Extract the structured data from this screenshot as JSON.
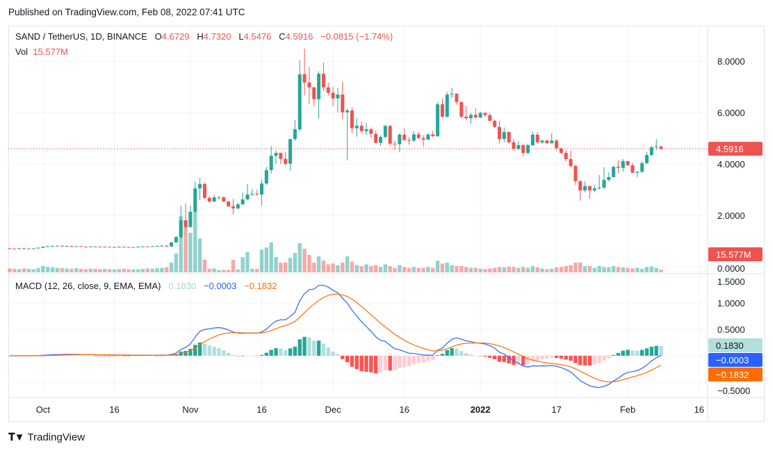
{
  "published": "Published on TradingView.com, Feb 08, 2022 07:41 UTC",
  "legend": {
    "symbol": "SAND / TetherUS, 1D, BINANCE",
    "o_label": "O",
    "o": "4.6729",
    "h_label": "H",
    "h": "4.7320",
    "l_label": "L",
    "l": "4.5476",
    "c_label": "C",
    "c": "4.5916",
    "change": "−0.0815 (−1.74%)",
    "vol_label": "Vol",
    "vol": "15.577M"
  },
  "macd_legend": {
    "title": "MACD (12, 26, close, 9, EMA, EMA)",
    "histogram": "0.1830",
    "macd": "−0.0003",
    "signal": "−0.1832"
  },
  "footer": {
    "logo": "TradingView"
  },
  "colors": {
    "up": "#26a69a",
    "down": "#ef5350",
    "macd_line": "#2962ff",
    "signal_line": "#ff6d00",
    "hist_pos_rising": "#26a69a",
    "hist_pos_falling": "#b2dfdb",
    "hist_neg_falling": "#ff5252",
    "hist_neg_rising": "#ffcdd2"
  },
  "chart_data": {
    "type": "candlestick",
    "price_axis": {
      "ticks": [
        "8.0000",
        "6.0000",
        "4.0000",
        "2.0000",
        "0.0000"
      ],
      "values": [
        8,
        6,
        4,
        2,
        0
      ]
    },
    "last_price_label": "4.5916",
    "last_price": 4.5916,
    "last_volume_label": "15.577M",
    "macd_axis": {
      "ticks": [
        "1.5000",
        "1.0000",
        "0.5000",
        "−0.5000"
      ],
      "values": [
        1.5,
        1.0,
        0.5,
        -0.5
      ]
    },
    "macd_labels": {
      "histogram": "0.1830",
      "macd": "−0.0003",
      "signal": "−0.1832"
    },
    "macd_params": {
      "fast": 12,
      "slow": 26,
      "signal": 9
    },
    "x_ticks": [
      [
        "Oct",
        "2021-10-01"
      ],
      [
        "16",
        "2021-10-16"
      ],
      [
        "Nov",
        "2021-11-01"
      ],
      [
        "16",
        "2021-11-16"
      ],
      [
        "Dec",
        "2021-12-01"
      ],
      [
        "16",
        "2021-12-16"
      ],
      [
        "2022",
        "2022-01-01"
      ],
      [
        "17",
        "2022-01-17"
      ],
      [
        "Feb",
        "2022-02-01"
      ],
      [
        "16",
        "2022-02-16"
      ]
    ],
    "grid": true,
    "columns": [
      "date",
      "open",
      "high",
      "low",
      "close",
      "volume_M"
    ],
    "candles": [
      [
        "2021-09-24",
        0.72,
        0.74,
        0.69,
        0.71,
        22
      ],
      [
        "2021-09-25",
        0.71,
        0.72,
        0.69,
        0.7,
        20
      ],
      [
        "2021-09-26",
        0.7,
        0.73,
        0.68,
        0.72,
        18
      ],
      [
        "2021-09-27",
        0.72,
        0.74,
        0.69,
        0.7,
        22
      ],
      [
        "2021-09-28",
        0.7,
        0.72,
        0.68,
        0.71,
        20
      ],
      [
        "2021-09-29",
        0.71,
        0.73,
        0.7,
        0.72,
        18
      ],
      [
        "2021-09-30",
        0.72,
        0.76,
        0.71,
        0.74,
        24
      ],
      [
        "2021-10-01",
        0.74,
        0.8,
        0.73,
        0.78,
        35
      ],
      [
        "2021-10-02",
        0.78,
        0.82,
        0.77,
        0.8,
        30
      ],
      [
        "2021-10-03",
        0.8,
        0.83,
        0.79,
        0.81,
        28
      ],
      [
        "2021-10-04",
        0.81,
        0.84,
        0.79,
        0.82,
        25
      ],
      [
        "2021-10-05",
        0.82,
        0.83,
        0.78,
        0.8,
        24
      ],
      [
        "2021-10-06",
        0.8,
        0.83,
        0.78,
        0.81,
        22
      ],
      [
        "2021-10-07",
        0.81,
        0.82,
        0.78,
        0.79,
        20
      ],
      [
        "2021-10-08",
        0.79,
        0.81,
        0.78,
        0.8,
        24
      ],
      [
        "2021-10-09",
        0.8,
        0.81,
        0.77,
        0.78,
        20
      ],
      [
        "2021-10-10",
        0.78,
        0.79,
        0.76,
        0.77,
        18
      ],
      [
        "2021-10-11",
        0.77,
        0.8,
        0.76,
        0.79,
        22
      ],
      [
        "2021-10-12",
        0.79,
        0.8,
        0.77,
        0.78,
        20
      ],
      [
        "2021-10-13",
        0.78,
        0.79,
        0.76,
        0.77,
        18
      ],
      [
        "2021-10-14",
        0.77,
        0.79,
        0.76,
        0.78,
        20
      ],
      [
        "2021-10-15",
        0.78,
        0.79,
        0.75,
        0.76,
        18
      ],
      [
        "2021-10-16",
        0.76,
        0.78,
        0.75,
        0.77,
        17
      ],
      [
        "2021-10-17",
        0.77,
        0.79,
        0.76,
        0.78,
        18
      ],
      [
        "2021-10-18",
        0.78,
        0.79,
        0.76,
        0.77,
        20
      ],
      [
        "2021-10-19",
        0.77,
        0.78,
        0.75,
        0.76,
        18
      ],
      [
        "2021-10-20",
        0.76,
        0.78,
        0.75,
        0.77,
        17
      ],
      [
        "2021-10-21",
        0.77,
        0.8,
        0.76,
        0.78,
        18
      ],
      [
        "2021-10-22",
        0.78,
        0.8,
        0.77,
        0.79,
        20
      ],
      [
        "2021-10-23",
        0.79,
        0.8,
        0.77,
        0.78,
        22
      ],
      [
        "2021-10-24",
        0.78,
        0.81,
        0.77,
        0.8,
        20
      ],
      [
        "2021-10-25",
        0.8,
        0.83,
        0.79,
        0.81,
        24
      ],
      [
        "2021-10-26",
        0.81,
        0.85,
        0.79,
        0.82,
        25
      ],
      [
        "2021-10-27",
        0.82,
        0.84,
        0.77,
        0.79,
        28
      ],
      [
        "2021-10-28",
        0.79,
        0.97,
        0.78,
        0.95,
        55
      ],
      [
        "2021-10-29",
        0.95,
        1.2,
        0.93,
        1.16,
        105
      ],
      [
        "2021-10-30",
        1.16,
        2.38,
        1.1,
        1.81,
        315
      ],
      [
        "2021-10-31",
        1.81,
        2.47,
        1.5,
        1.55,
        285
      ],
      [
        "2021-11-01",
        1.55,
        2.38,
        1.52,
        2.14,
        222
      ],
      [
        "2021-11-02",
        2.14,
        3.32,
        2.1,
        3.05,
        340
      ],
      [
        "2021-11-03",
        3.05,
        3.46,
        2.6,
        3.22,
        190
      ],
      [
        "2021-11-04",
        3.22,
        3.28,
        2.62,
        2.68,
        72
      ],
      [
        "2021-11-05",
        2.68,
        2.75,
        2.48,
        2.54,
        20
      ],
      [
        "2021-11-06",
        2.54,
        2.8,
        2.52,
        2.7,
        22
      ],
      [
        "2021-11-07",
        2.7,
        2.76,
        2.62,
        2.7,
        12
      ],
      [
        "2021-11-08",
        2.7,
        2.74,
        2.5,
        2.54,
        14
      ],
      [
        "2021-11-09",
        2.54,
        2.56,
        2.32,
        2.35,
        14
      ],
      [
        "2021-11-10",
        2.35,
        2.64,
        2.04,
        2.27,
        70
      ],
      [
        "2021-11-11",
        2.27,
        2.5,
        2.24,
        2.43,
        16
      ],
      [
        "2021-11-12",
        2.43,
        2.89,
        2.4,
        2.62,
        86
      ],
      [
        "2021-11-13",
        2.62,
        3.22,
        2.6,
        2.81,
        113
      ],
      [
        "2021-11-14",
        2.81,
        3.02,
        2.76,
        2.84,
        20
      ],
      [
        "2021-11-15",
        2.84,
        3.0,
        2.76,
        2.81,
        20
      ],
      [
        "2021-11-16",
        2.81,
        3.4,
        2.38,
        3.24,
        128
      ],
      [
        "2021-11-17",
        3.24,
        3.88,
        3.18,
        3.76,
        140
      ],
      [
        "2021-11-18",
        3.76,
        4.7,
        3.63,
        4.32,
        168
      ],
      [
        "2021-11-19",
        4.32,
        4.52,
        4.0,
        4.43,
        86
      ],
      [
        "2021-11-20",
        4.43,
        4.44,
        4.0,
        4.2,
        55
      ],
      [
        "2021-11-21",
        4.2,
        4.48,
        3.92,
        4.01,
        55
      ],
      [
        "2021-11-22",
        4.01,
        4.97,
        3.74,
        4.97,
        82
      ],
      [
        "2021-11-23",
        4.97,
        5.7,
        4.89,
        5.35,
        109
      ],
      [
        "2021-11-24",
        5.35,
        8.03,
        5.26,
        7.49,
        164
      ],
      [
        "2021-11-25",
        7.49,
        8.49,
        6.68,
        7.17,
        133
      ],
      [
        "2021-11-26",
        7.17,
        7.78,
        6.32,
        6.98,
        98
      ],
      [
        "2021-11-27",
        6.98,
        7.01,
        6.24,
        6.52,
        55
      ],
      [
        "2021-11-28",
        6.52,
        7.6,
        5.77,
        7.51,
        90
      ],
      [
        "2021-11-29",
        7.51,
        7.95,
        6.84,
        6.98,
        66
      ],
      [
        "2021-11-30",
        6.98,
        7.16,
        6.67,
        6.77,
        45
      ],
      [
        "2021-12-01",
        6.77,
        7.0,
        6.25,
        6.55,
        50
      ],
      [
        "2021-12-02",
        6.55,
        6.95,
        6.01,
        6.7,
        40
      ],
      [
        "2021-12-03",
        6.7,
        7.2,
        5.75,
        6.01,
        55
      ],
      [
        "2021-12-04",
        6.01,
        6.15,
        4.14,
        6.08,
        90
      ],
      [
        "2021-12-05",
        6.08,
        6.2,
        5.2,
        5.39,
        60
      ],
      [
        "2021-12-06",
        5.39,
        5.8,
        5.06,
        5.49,
        40
      ],
      [
        "2021-12-07",
        5.49,
        5.65,
        5.2,
        5.28,
        35
      ],
      [
        "2021-12-08",
        5.28,
        5.6,
        5.12,
        5.35,
        45
      ],
      [
        "2021-12-09",
        5.35,
        5.42,
        5.01,
        5.17,
        35
      ],
      [
        "2021-12-10",
        5.17,
        5.3,
        4.8,
        4.82,
        40
      ],
      [
        "2021-12-11",
        4.82,
        5.12,
        4.7,
        5.05,
        30
      ],
      [
        "2021-12-12",
        5.05,
        5.52,
        5.0,
        5.48,
        45
      ],
      [
        "2021-12-13",
        5.48,
        5.52,
        4.72,
        4.79,
        35
      ],
      [
        "2021-12-14",
        4.79,
        4.9,
        4.54,
        4.77,
        25
      ],
      [
        "2021-12-15",
        4.77,
        5.2,
        4.45,
        5.14,
        40
      ],
      [
        "2021-12-16",
        5.14,
        5.38,
        4.9,
        4.93,
        30
      ],
      [
        "2021-12-17",
        4.93,
        5.05,
        4.75,
        4.91,
        25
      ],
      [
        "2021-12-18",
        4.91,
        5.28,
        4.85,
        5.15,
        30
      ],
      [
        "2021-12-19",
        5.15,
        5.25,
        4.97,
        5.01,
        25
      ],
      [
        "2021-12-20",
        5.01,
        5.12,
        4.68,
        4.95,
        25
      ],
      [
        "2021-12-21",
        4.95,
        5.18,
        4.92,
        5.15,
        30
      ],
      [
        "2021-12-22",
        5.15,
        5.29,
        5.04,
        5.08,
        25
      ],
      [
        "2021-12-23",
        5.08,
        6.4,
        5.05,
        6.32,
        65
      ],
      [
        "2021-12-24",
        6.32,
        6.54,
        5.78,
        5.84,
        50
      ],
      [
        "2021-12-25",
        5.84,
        6.8,
        5.8,
        6.7,
        55
      ],
      [
        "2021-12-26",
        6.7,
        6.97,
        6.55,
        6.73,
        40
      ],
      [
        "2021-12-27",
        6.73,
        6.76,
        6.3,
        6.41,
        35
      ],
      [
        "2021-12-28",
        6.41,
        6.42,
        5.78,
        5.84,
        35
      ],
      [
        "2021-12-29",
        5.84,
        6.26,
        5.7,
        5.78,
        30
      ],
      [
        "2021-12-30",
        5.78,
        6.0,
        5.56,
        5.91,
        25
      ],
      [
        "2021-12-31",
        5.91,
        6.16,
        5.76,
        5.81,
        25
      ],
      [
        "2022-01-01",
        5.81,
        6.03,
        5.78,
        5.99,
        20
      ],
      [
        "2022-01-02",
        5.99,
        6.0,
        5.84,
        5.9,
        18
      ],
      [
        "2022-01-03",
        5.9,
        5.98,
        5.64,
        5.68,
        22
      ],
      [
        "2022-01-04",
        5.68,
        5.72,
        5.4,
        5.44,
        25
      ],
      [
        "2022-01-05",
        5.44,
        5.68,
        4.8,
        4.97,
        30
      ],
      [
        "2022-01-06",
        4.97,
        5.42,
        4.84,
        5.24,
        28
      ],
      [
        "2022-01-07",
        5.24,
        5.27,
        4.8,
        4.84,
        32
      ],
      [
        "2022-01-08",
        4.84,
        4.96,
        4.5,
        4.59,
        30
      ],
      [
        "2022-01-09",
        4.59,
        4.91,
        4.55,
        4.73,
        25
      ],
      [
        "2022-01-10",
        4.73,
        4.8,
        4.3,
        4.43,
        30
      ],
      [
        "2022-01-11",
        4.43,
        4.78,
        4.37,
        4.73,
        25
      ],
      [
        "2022-01-12",
        4.73,
        5.25,
        4.7,
        5.14,
        35
      ],
      [
        "2022-01-13",
        5.14,
        5.25,
        4.79,
        4.84,
        28
      ],
      [
        "2022-01-14",
        4.84,
        4.95,
        4.79,
        4.91,
        22
      ],
      [
        "2022-01-15",
        4.91,
        4.93,
        4.78,
        4.81,
        18
      ],
      [
        "2022-01-16",
        4.81,
        5.2,
        4.79,
        4.91,
        20
      ],
      [
        "2022-01-17",
        4.91,
        4.96,
        4.54,
        4.61,
        28
      ],
      [
        "2022-01-18",
        4.61,
        4.63,
        4.38,
        4.43,
        30
      ],
      [
        "2022-01-19",
        4.43,
        4.54,
        4.1,
        4.19,
        35
      ],
      [
        "2022-01-20",
        4.19,
        4.53,
        3.85,
        3.92,
        40
      ],
      [
        "2022-01-21",
        3.92,
        3.98,
        3.18,
        3.33,
        55
      ],
      [
        "2022-01-22",
        3.33,
        3.38,
        2.57,
        2.97,
        55
      ],
      [
        "2022-01-23",
        2.97,
        3.33,
        2.9,
        3.14,
        35
      ],
      [
        "2022-01-24",
        3.14,
        3.15,
        2.64,
        2.97,
        35
      ],
      [
        "2022-01-25",
        2.97,
        3.19,
        2.9,
        3.05,
        25
      ],
      [
        "2022-01-26",
        3.05,
        3.57,
        3.0,
        3.08,
        35
      ],
      [
        "2022-01-27",
        3.08,
        3.88,
        3.02,
        3.38,
        30
      ],
      [
        "2022-01-28",
        3.38,
        3.67,
        3.32,
        3.49,
        28
      ],
      [
        "2022-01-29",
        3.49,
        3.93,
        3.48,
        3.89,
        35
      ],
      [
        "2022-01-30",
        3.89,
        4.14,
        3.64,
        3.85,
        30
      ],
      [
        "2022-01-31",
        3.85,
        4.19,
        3.7,
        4.11,
        28
      ],
      [
        "2022-02-01",
        4.11,
        4.12,
        3.93,
        3.95,
        25
      ],
      [
        "2022-02-02",
        3.95,
        4.05,
        3.65,
        3.66,
        22
      ],
      [
        "2022-02-03",
        3.66,
        3.7,
        3.49,
        3.7,
        25
      ],
      [
        "2022-02-04",
        3.7,
        4.12,
        3.64,
        4.03,
        20
      ],
      [
        "2022-02-05",
        4.03,
        4.47,
        4.0,
        4.35,
        30
      ],
      [
        "2022-02-06",
        4.35,
        4.72,
        4.32,
        4.65,
        32
      ],
      [
        "2022-02-07",
        4.65,
        4.96,
        4.54,
        4.68,
        25
      ],
      [
        "2022-02-08",
        4.6729,
        4.732,
        4.5476,
        4.5916,
        15.577
      ]
    ]
  }
}
